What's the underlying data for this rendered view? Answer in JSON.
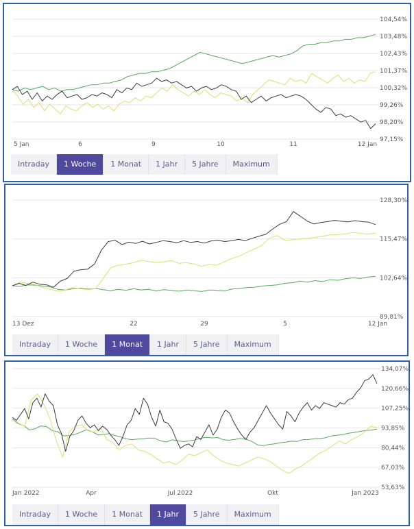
{
  "tab_labels": [
    "Intraday",
    "1 Woche",
    "1 Monat",
    "1 Jahr",
    "5 Jahre",
    "Maximum"
  ],
  "colors": {
    "black_series": "#3a3a3a",
    "green_series": "#55a85a",
    "yellow_series": "#dede70",
    "frame": "#2f5fa8",
    "active_tab": "#4f4aa0"
  },
  "chart_data": [
    {
      "type": "line",
      "active_tab": "1 Woche",
      "y_ticks": [
        "104,54%",
        "103,48%",
        "102,43%",
        "101,37%",
        "100,32%",
        "99,26%",
        "98,20%",
        "97,15%"
      ],
      "ylim": [
        97.15,
        104.54
      ],
      "x_ticks": [
        "5 Jan",
        "6",
        "9",
        "10",
        "11",
        "12 Jan"
      ],
      "grid": true,
      "series": [
        {
          "color": "black",
          "values": [
            100.2,
            100.4,
            99.9,
            100.1,
            99.6,
            100.0,
            99.5,
            99.8,
            99.6,
            99.9,
            100.1,
            99.7,
            99.8,
            99.9,
            99.6,
            99.7,
            99.9,
            99.8,
            100.0,
            99.9,
            99.7,
            100.2,
            100.0,
            100.3,
            100.2,
            100.6,
            100.4,
            100.5,
            100.6,
            100.9,
            100.7,
            100.8,
            100.6,
            100.7,
            100.5,
            100.3,
            100.4,
            100.1,
            100.3,
            100.4,
            100.2,
            100.3,
            100.5,
            100.4,
            100.2,
            100.1,
            99.6,
            99.8,
            99.4,
            99.6,
            99.8,
            99.5,
            99.7,
            99.8,
            99.9,
            99.7,
            99.8,
            99.9,
            99.8,
            99.6,
            99.3,
            99.0,
            98.8,
            99.1,
            99.0,
            98.6,
            98.7,
            98.5,
            98.6,
            98.4,
            98.2,
            98.3,
            97.8,
            98.1
          ]
        },
        {
          "color": "green",
          "values": [
            100.2,
            100.1,
            100.3,
            100.2,
            100.3,
            100.4,
            100.2,
            100.3,
            100.1,
            100.2,
            100.2,
            100.3,
            100.4,
            100.5,
            100.5,
            100.6,
            100.6,
            100.7,
            100.8,
            101.0,
            101.1,
            101.2,
            101.2,
            101.3,
            101.3,
            101.4,
            101.5,
            101.7,
            101.9,
            102.1,
            102.3,
            102.5,
            102.4,
            102.3,
            102.2,
            102.1,
            102.0,
            101.9,
            101.8,
            101.9,
            102.0,
            102.1,
            102.2,
            102.3,
            102.2,
            102.3,
            102.4,
            102.6,
            102.9,
            103.0,
            103.0,
            103.1,
            103.1,
            103.2,
            103.2,
            103.3,
            103.3,
            103.4,
            103.4,
            103.5,
            103.6
          ]
        },
        {
          "color": "yellow",
          "values": [
            100.2,
            99.8,
            99.3,
            99.6,
            99.1,
            99.4,
            98.9,
            99.3,
            99.0,
            98.7,
            99.2,
            99.0,
            98.9,
            99.2,
            99.4,
            99.1,
            99.3,
            99.0,
            99.2,
            98.9,
            99.3,
            99.5,
            99.4,
            99.7,
            99.5,
            99.8,
            99.7,
            100.0,
            100.3,
            100.1,
            100.5,
            100.2,
            100.0,
            99.8,
            100.1,
            99.9,
            100.2,
            99.9,
            99.7,
            100.0,
            99.9,
            99.8,
            99.5,
            99.7,
            99.4,
            99.9,
            100.2,
            100.5,
            100.8,
            100.7,
            100.6,
            100.5,
            100.9,
            100.7,
            100.8,
            100.6,
            101.2,
            101.0,
            100.8,
            100.6,
            100.9,
            101.1,
            100.7,
            100.9,
            100.6,
            100.8,
            100.7,
            101.2,
            101.3
          ]
        }
      ]
    },
    {
      "type": "line",
      "active_tab": "1 Monat",
      "y_ticks": [
        "128,30%",
        "115,47%",
        "102,64%",
        "89,81%"
      ],
      "ylim": [
        89.81,
        128.3
      ],
      "x_ticks": [
        "13 Dez",
        "22",
        "29",
        "5",
        "12 Jan"
      ],
      "grid": true,
      "series": [
        {
          "color": "black",
          "values": [
            100.0,
            100.8,
            100.1,
            101.2,
            100.5,
            100.3,
            99.5,
            101.5,
            102.4,
            104.8,
            105.3,
            105.5,
            107.2,
            111.8,
            114.6,
            115.0,
            113.6,
            114.4,
            114.0,
            114.7,
            113.8,
            114.3,
            114.9,
            114.6,
            114.2,
            114.9,
            114.3,
            114.6,
            114.1,
            114.8,
            115.0,
            114.6,
            114.9,
            115.3,
            114.9,
            115.7,
            116.4,
            117.0,
            118.8,
            120.3,
            121.2,
            124.5,
            123.0,
            121.4,
            120.4,
            120.9,
            121.2,
            121.6,
            121.3,
            121.1,
            121.5,
            121.2,
            121.0,
            120.2
          ]
        },
        {
          "color": "green",
          "values": [
            100.0,
            99.8,
            100.3,
            100.2,
            99.9,
            99.6,
            98.8,
            98.6,
            99.0,
            99.2,
            98.9,
            99.1,
            98.7,
            98.4,
            98.8,
            98.5,
            99.0,
            98.6,
            98.8,
            98.3,
            98.7,
            98.5,
            98.2,
            98.6,
            98.4,
            98.1,
            98.6,
            98.5,
            98.3,
            98.9,
            99.1,
            99.4,
            99.5,
            99.9,
            100.1,
            100.3,
            100.8,
            101.0,
            101.5,
            101.2,
            101.7,
            101.4,
            102.0,
            101.8,
            102.3,
            102.6,
            102.4,
            102.9,
            103.1
          ]
        },
        {
          "color": "yellow",
          "values": [
            100.0,
            101.2,
            100.8,
            100.4,
            99.4,
            98.8,
            98.2,
            98.6,
            99.4,
            99.0,
            98.7,
            99.1,
            102.3,
            106.0,
            106.8,
            107.1,
            107.6,
            108.4,
            108.0,
            107.7,
            107.9,
            108.3,
            107.4,
            107.6,
            107.2,
            106.4,
            107.1,
            106.8,
            107.9,
            109.0,
            109.8,
            111.0,
            112.2,
            113.4,
            115.8,
            116.6,
            115.0,
            115.2,
            115.5,
            115.6,
            116.0,
            116.4,
            116.8,
            116.9,
            117.1,
            117.6,
            117.3,
            117.0,
            117.4
          ]
        }
      ]
    },
    {
      "type": "line",
      "active_tab": "1 Jahr",
      "y_ticks": [
        "134,07%",
        "120,66%",
        "107,25%",
        "93,85%",
        "80,44%",
        "67,03%",
        "53,63%"
      ],
      "ylim": [
        53.63,
        134.07
      ],
      "x_ticks": [
        "Jan 2022",
        "Apr",
        "Jul 2022",
        "Okt",
        "Jan 2023"
      ],
      "grid": true,
      "series": [
        {
          "color": "black",
          "values": [
            101,
            99,
            103,
            107,
            100,
            111,
            114,
            108,
            117,
            112,
            109,
            96,
            90,
            78,
            88,
            92,
            99,
            102,
            97,
            94,
            96,
            92,
            95,
            93,
            89,
            86,
            82,
            88,
            96,
            99,
            107,
            103,
            114,
            110,
            101,
            95,
            106,
            98,
            97,
            93,
            86,
            80,
            82,
            83,
            81,
            88,
            86,
            91,
            96,
            89,
            93,
            101,
            106,
            104,
            98,
            93,
            89,
            86,
            91,
            94,
            99,
            104,
            109,
            104,
            100,
            96,
            93,
            105,
            102,
            98,
            104,
            108,
            111,
            106,
            109,
            107,
            111,
            110,
            109,
            108,
            111,
            110,
            113,
            114,
            118,
            121,
            126,
            127,
            130,
            124
          ]
        },
        {
          "color": "green",
          "values": [
            100.0,
            96.8,
            95.4,
            92.5,
            93.3,
            95.2,
            94.8,
            92.1,
            91.2,
            88.4,
            88.8,
            89.5,
            90.9,
            92.7,
            91.3,
            89.2,
            89.4,
            90.0,
            88.7,
            87.8,
            86.4,
            85.9,
            86.3,
            86.5,
            87.0,
            86.8,
            85.1,
            84.3,
            85.8,
            85.1,
            84.6,
            85.0,
            85.6,
            86.8,
            87.5,
            87.1,
            87.3,
            85.9,
            85.5,
            86.0,
            86.7,
            86.2,
            84.8,
            82.4,
            81.8,
            82.6,
            83.0,
            83.8,
            84.2,
            84.9,
            84.7,
            85.9,
            86.0,
            86.6,
            86.6,
            87.2,
            88.4,
            88.9,
            89.4,
            90.2,
            90.8,
            91.5,
            92.1,
            92.4,
            93.0
          ]
        },
        {
          "color": "yellow",
          "values": [
            101,
            97,
            95,
            113,
            117,
            110,
            100,
            85,
            74,
            91,
            95,
            96,
            92,
            91,
            94,
            86,
            84,
            79,
            82,
            83,
            79,
            78,
            76,
            73,
            70,
            71,
            69,
            72,
            76,
            75,
            77,
            79,
            75,
            72,
            70,
            69,
            68,
            70,
            72,
            74,
            73,
            71,
            68,
            65,
            63,
            66,
            68,
            71,
            74,
            77,
            79,
            82,
            85,
            83,
            86,
            88,
            91,
            95,
            94
          ]
        }
      ]
    }
  ]
}
